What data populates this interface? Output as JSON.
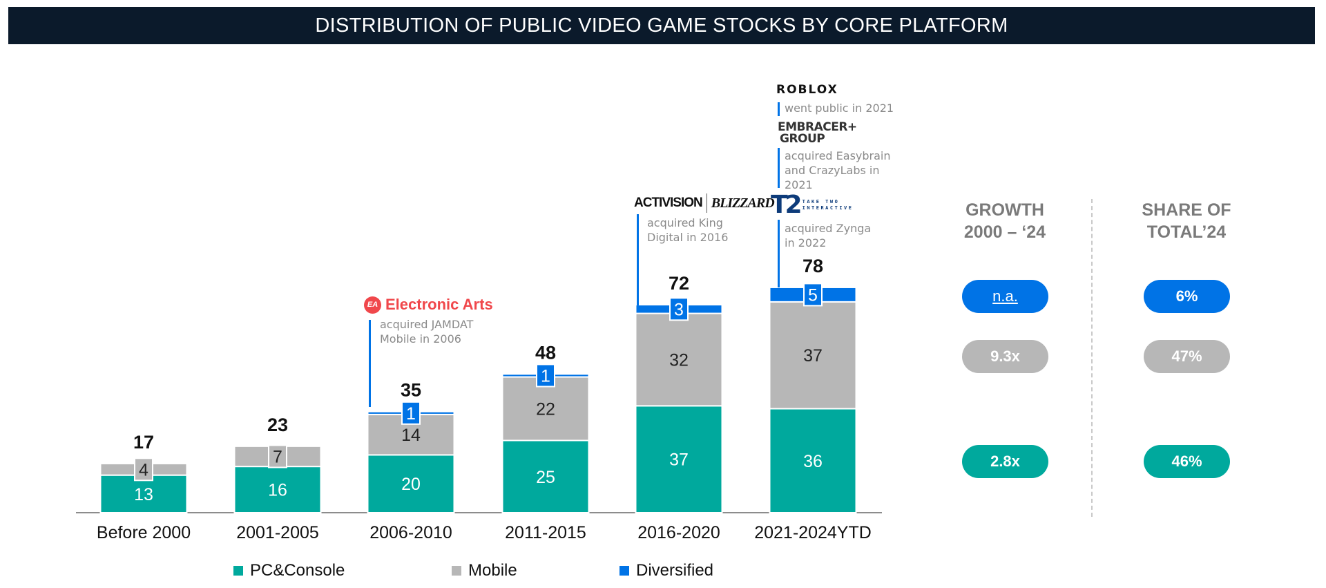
{
  "title": "DISTRIBUTION OF PUBLIC VIDEO GAME STOCKS BY CORE PLATFORM",
  "colors": {
    "pc_console": "#00A99D",
    "mobile": "#B7B7B7",
    "diversified": "#0073E6",
    "header_bg": "#0B1A2B"
  },
  "chart_data": {
    "type": "stacked-bar",
    "categories": [
      "Before 2000",
      "2001-2005",
      "2006-2010",
      "2011-2015",
      "2016-2020",
      "2021-2024YTD"
    ],
    "series": [
      {
        "name": "PC&Console",
        "values": [
          13,
          16,
          20,
          25,
          37,
          36
        ]
      },
      {
        "name": "Mobile",
        "values": [
          4,
          7,
          14,
          22,
          32,
          37
        ]
      },
      {
        "name": "Diversified",
        "values": [
          0,
          0,
          1,
          1,
          3,
          5
        ]
      }
    ],
    "totals": [
      17,
      23,
      35,
      48,
      72,
      78
    ],
    "legend_position": "bottom",
    "grid": false
  },
  "annotations": [
    {
      "logo": "Electronic Arts",
      "logo_mark": "EA",
      "text": [
        "acquired JAMDAT",
        "Mobile in 2006"
      ]
    },
    {
      "logo": "ACTIVISION",
      "logo2": "BLIZZARD",
      "text": [
        "acquired King",
        "Digital in 2016"
      ]
    },
    {
      "logo": "ROBLOX",
      "text": [
        "went public in 2021"
      ]
    },
    {
      "logo": "EMBRACER+",
      "logo2": "GROUP",
      "text": [
        "acquired Easybrain",
        "and CrazyLabs in",
        "2021"
      ]
    },
    {
      "logo": "T2",
      "logo2": "TAKE TWO",
      "logo3": "INTERACTIVE",
      "text": [
        "acquired Zynga",
        "in 2022"
      ]
    }
  ],
  "panel": {
    "growth_header": [
      "GROWTH",
      "2000 – ‘24"
    ],
    "share_header": [
      "SHARE OF",
      "TOTAL’24"
    ],
    "growth": {
      "diversified": "n.a.",
      "mobile": "9.3x",
      "pc_console": "2.8x"
    },
    "share": {
      "diversified": "6%",
      "mobile": "47%",
      "pc_console": "46%"
    }
  }
}
